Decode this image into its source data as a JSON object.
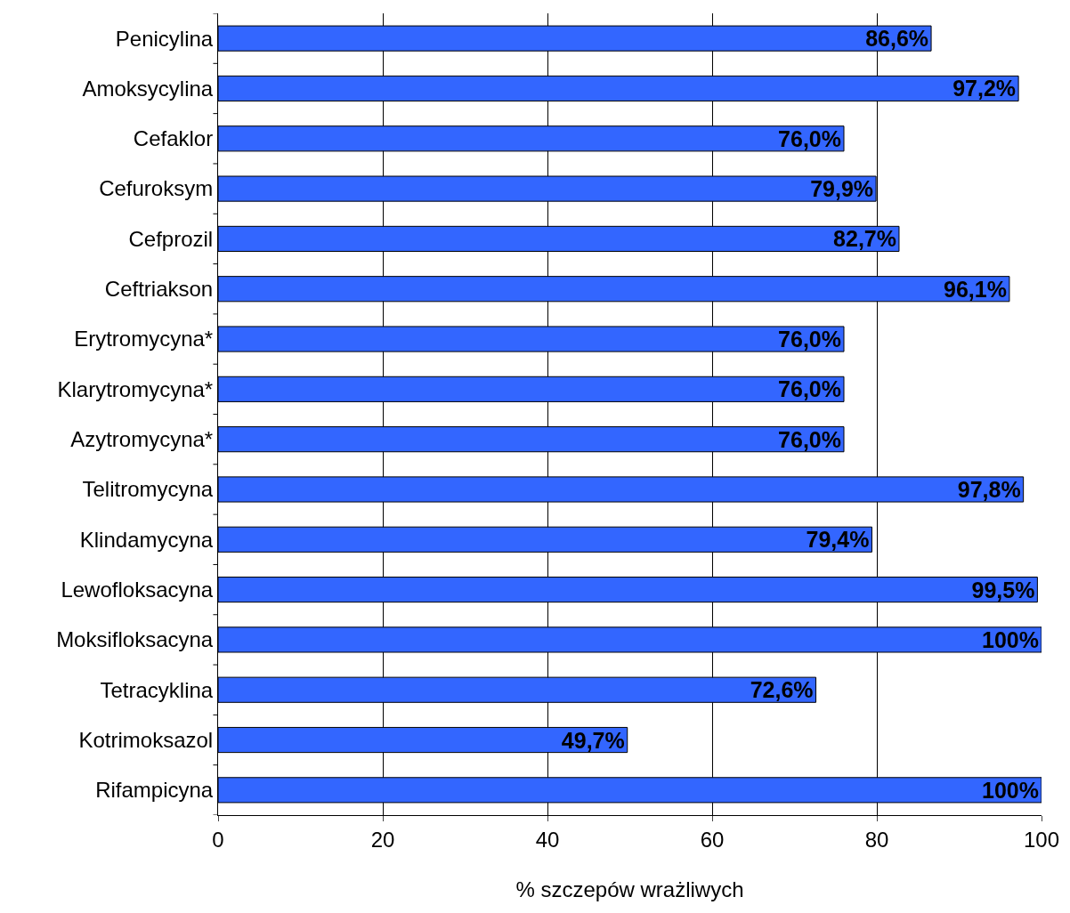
{
  "chart_data": {
    "type": "bar",
    "orientation": "horizontal",
    "xlabel": "% szczepów wrażliwych",
    "categories": [
      "Penicylina",
      "Amoksycylina",
      "Cefaklor",
      "Cefuroksym",
      "Cefprozil",
      "Ceftriakson",
      "Erytromycyna*",
      "Klarytromycyna*",
      "Azytromycyna*",
      "Telitromycyna",
      "Klindamycyna",
      "Lewofloksacyna",
      "Moksifloksacyna",
      "Tetracyklina",
      "Kotrimoksazol",
      "Rifampicyna"
    ],
    "values": [
      86.6,
      97.2,
      76.0,
      79.9,
      82.7,
      96.1,
      76.0,
      76.0,
      76.0,
      97.8,
      79.4,
      99.5,
      100,
      72.6,
      49.7,
      100
    ],
    "value_labels": [
      "86,6%",
      "97,2%",
      "76,0%",
      "79,9%",
      "82,7%",
      "96,1%",
      "76,0%",
      "76,0%",
      "76,0%",
      "97,8%",
      "79,4%",
      "99,5%",
      "100%",
      "72,6%",
      "49,7%",
      "100%"
    ],
    "color": "#3366ff",
    "xlim": [
      0,
      100
    ],
    "xticks": [
      0,
      20,
      40,
      60,
      80,
      100
    ],
    "grid": "x",
    "legend": false
  }
}
